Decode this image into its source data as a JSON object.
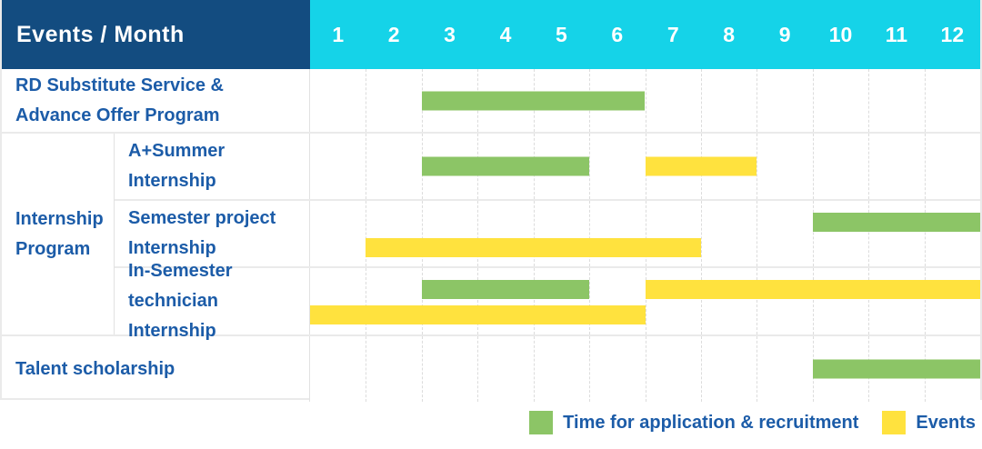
{
  "header": {
    "title": "Events / Month",
    "months": [
      "1",
      "2",
      "3",
      "4",
      "5",
      "6",
      "7",
      "8",
      "9",
      "10",
      "11",
      "12"
    ]
  },
  "colors": {
    "header_bg": "#134C80",
    "months_bg": "#15D3E8",
    "header_text": "#FFFFFF",
    "label_text": "#1C5CA8",
    "bar_green": "#8CC566",
    "bar_yellow": "#FFE23E",
    "row_line": "#EAEAEA",
    "col_line": "#E2E2E2",
    "grid_line": "#DCDCDC"
  },
  "group": {
    "label_lines": [
      "Internship",
      "Program"
    ]
  },
  "rows": [
    {
      "id": "rd-substitute",
      "label_lines": [
        "RD Substitute Service &",
        "Advance Offer Program"
      ],
      "bars": [
        {
          "color": "green",
          "start": 3,
          "end": 6,
          "lane": "center"
        }
      ]
    },
    {
      "id": "a-summer-internship",
      "label_lines": [
        "A+Summer",
        "Internship"
      ],
      "bars": [
        {
          "color": "green",
          "start": 3,
          "end": 5,
          "lane": "center"
        },
        {
          "color": "yellow",
          "start": 7,
          "end": 8,
          "lane": "center"
        }
      ]
    },
    {
      "id": "semester-project-internship",
      "label_lines": [
        "Semester project",
        "Internship"
      ],
      "bars": [
        {
          "color": "green",
          "start": 10,
          "end": 12,
          "lane": "top"
        },
        {
          "color": "yellow",
          "start": 2,
          "end": 7,
          "lane": "bottom"
        }
      ]
    },
    {
      "id": "in-semester-technician-internship",
      "label_lines": [
        "In-Semester",
        "technician Internship"
      ],
      "bars": [
        {
          "color": "green",
          "start": 3,
          "end": 5,
          "lane": "top"
        },
        {
          "color": "yellow",
          "start": 7,
          "end": 12,
          "lane": "top"
        },
        {
          "color": "yellow",
          "start": 1,
          "end": 6,
          "lane": "bottom"
        }
      ]
    },
    {
      "id": "talent-scholarship",
      "label_lines": [
        "Talent scholarship"
      ],
      "bars": [
        {
          "color": "green",
          "start": 10,
          "end": 12,
          "lane": "center"
        }
      ]
    }
  ],
  "legend": [
    {
      "label": "Time for application & recruitment",
      "color": "green"
    },
    {
      "label": "Events",
      "color": "yellow"
    }
  ],
  "chart_data": {
    "type": "bar",
    "subtype": "gantt-timeline",
    "title": "Events / Month",
    "x": {
      "label": "Month",
      "ticks": [
        1,
        2,
        3,
        4,
        5,
        6,
        7,
        8,
        9,
        10,
        11,
        12
      ],
      "range": [
        1,
        12
      ]
    },
    "grid": "dashed-vertical-month-dividers",
    "legend_position": "bottom-right",
    "series_legend": [
      "Time for application & recruitment",
      "Events"
    ],
    "tasks": [
      {
        "name": "RD Substitute Service & Advance Offer Program",
        "group": null,
        "intervals": [
          {
            "series": "Time for application & recruitment",
            "start_month": 3,
            "end_month": 6
          }
        ]
      },
      {
        "name": "A+Summer Internship",
        "group": "Internship Program",
        "intervals": [
          {
            "series": "Time for application & recruitment",
            "start_month": 3,
            "end_month": 5
          },
          {
            "series": "Events",
            "start_month": 7,
            "end_month": 8
          }
        ]
      },
      {
        "name": "Semester project Internship",
        "group": "Internship Program",
        "intervals": [
          {
            "series": "Time for application & recruitment",
            "start_month": 10,
            "end_month": 12
          },
          {
            "series": "Events",
            "start_month": 2,
            "end_month": 7
          }
        ]
      },
      {
        "name": "In-Semester technician Internship",
        "group": "Internship Program",
        "intervals": [
          {
            "series": "Time for application & recruitment",
            "start_month": 3,
            "end_month": 5
          },
          {
            "series": "Events",
            "start_month": 7,
            "end_month": 12
          },
          {
            "series": "Events",
            "start_month": 1,
            "end_month": 6
          }
        ]
      },
      {
        "name": "Talent scholarship",
        "group": null,
        "intervals": [
          {
            "series": "Time for application & recruitment",
            "start_month": 10,
            "end_month": 12
          }
        ]
      }
    ]
  }
}
